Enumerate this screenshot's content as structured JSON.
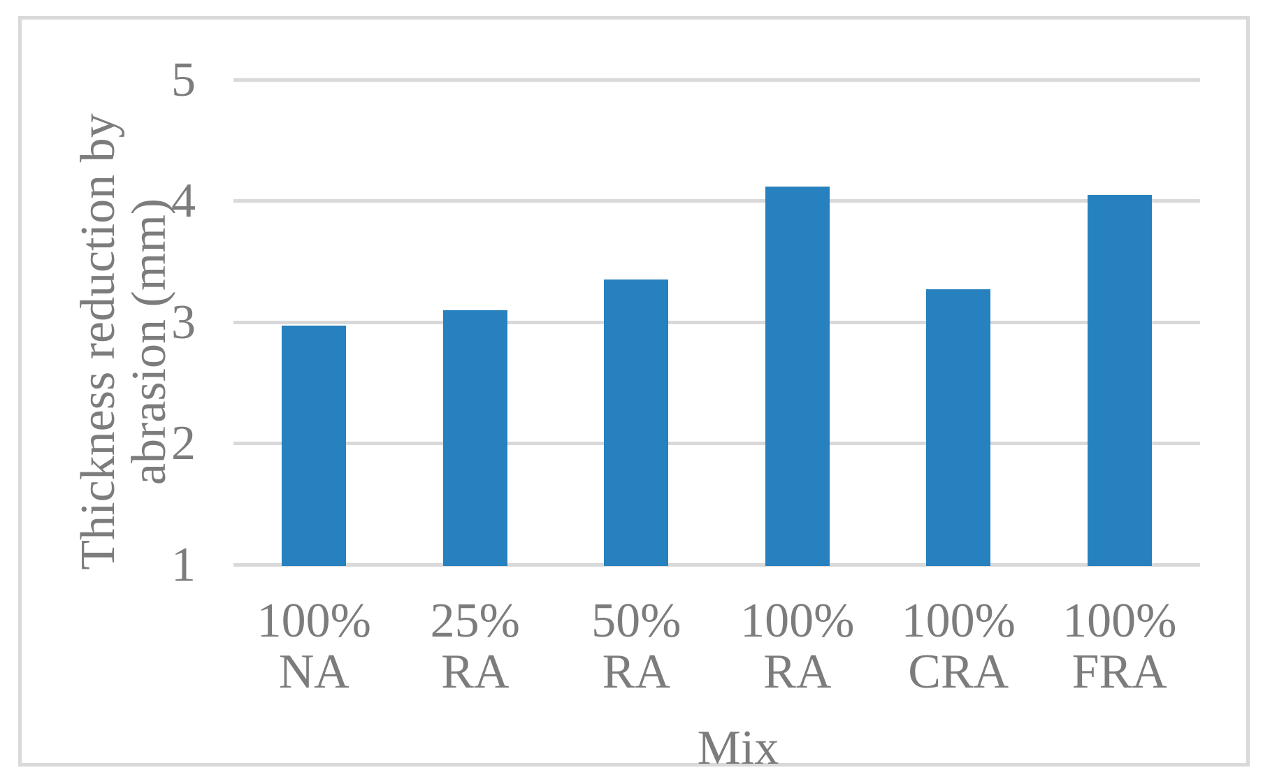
{
  "chart_data": {
    "type": "bar",
    "title": "",
    "xlabel": "Mix",
    "ylabel": "Thickness reduction by abrasion (mm)",
    "ylabel_lines": [
      "Thickness reduction by",
      "abrasion (mm)"
    ],
    "categories": [
      "100% NA",
      "25% RA",
      "50% RA",
      "100% RA",
      "100% CRA",
      "100% FRA"
    ],
    "category_label_lines": [
      [
        "100%",
        "NA"
      ],
      [
        "25%",
        "RA"
      ],
      [
        "50%",
        "RA"
      ],
      [
        "100%",
        "RA"
      ],
      [
        "100%",
        "CRA"
      ],
      [
        "100%",
        "FRA"
      ]
    ],
    "values": [
      2.97,
      3.1,
      3.35,
      4.12,
      3.27,
      4.05
    ],
    "ylim": [
      1,
      5
    ],
    "yticks": [
      1,
      2,
      3,
      4,
      5
    ],
    "grid": "horizontal",
    "legend_position": "none",
    "colors": {
      "bar": "#2681BE",
      "gridline": "#D9D9D9",
      "frame_border": "#D9D9D9",
      "text": "#7C7C7C",
      "background": "#FFFFFF"
    }
  }
}
